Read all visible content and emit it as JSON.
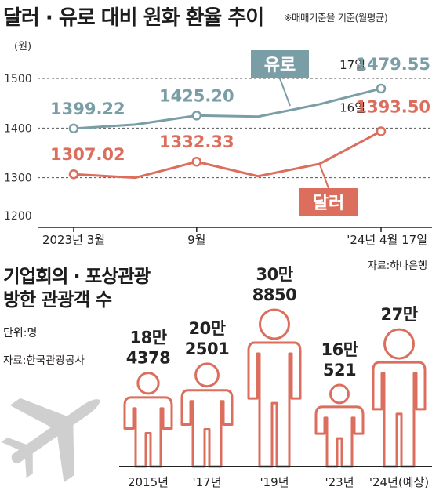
{
  "chart_data": [
    {
      "type": "line",
      "title": "달러 · 유로 대비 원화 환율 추이",
      "note": "※매매기준율 기준(월평균)",
      "ylabel": "(원)",
      "ylim": [
        1200,
        1500
      ],
      "yticks": [
        "1200",
        "1300",
        "1400",
        "1500"
      ],
      "x": [
        0,
        1,
        2,
        3,
        4,
        5
      ],
      "x_tick_labels": [
        "2023년 3월",
        "9월",
        "'24년 4월 17일"
      ],
      "series": [
        {
          "name": "유로",
          "color": "#7a9ea6",
          "values": [
            1399.22,
            1407,
            1425.2,
            1423,
            1448,
            1479.55
          ],
          "labels": [
            {
              "index": 0,
              "text": "1399.22"
            },
            {
              "index": 2,
              "text": "1425.20"
            },
            {
              "index": 5,
              "prefix": "17일",
              "text": "1479.55"
            }
          ]
        },
        {
          "name": "달러",
          "color": "#db6e5c",
          "values": [
            1307.02,
            1300,
            1332.33,
            1303,
            1328,
            1393.5
          ],
          "labels": [
            {
              "index": 0,
              "text": "1307.02"
            },
            {
              "index": 2,
              "text": "1332.33"
            },
            {
              "index": 5,
              "prefix": "16일",
              "text": "1393.50"
            }
          ]
        }
      ],
      "source": "자료:하나은행"
    },
    {
      "type": "bar",
      "title_lines": [
        "기업회의 · 포상관광",
        "방한 관광객 수"
      ],
      "unit": "단위:명",
      "source": "자료:한국관광공사",
      "categories": [
        "2015년",
        "'17년",
        "'19년",
        "'23년",
        "'24년(예상)"
      ],
      "values": [
        184378,
        202501,
        308850,
        160521,
        270000
      ],
      "value_labels": [
        [
          "18만",
          "4378"
        ],
        [
          "20만",
          "2501"
        ],
        [
          "30만",
          "8850"
        ],
        [
          "16만",
          "521"
        ],
        [
          "27만"
        ]
      ],
      "color": "#db6e5c"
    }
  ]
}
